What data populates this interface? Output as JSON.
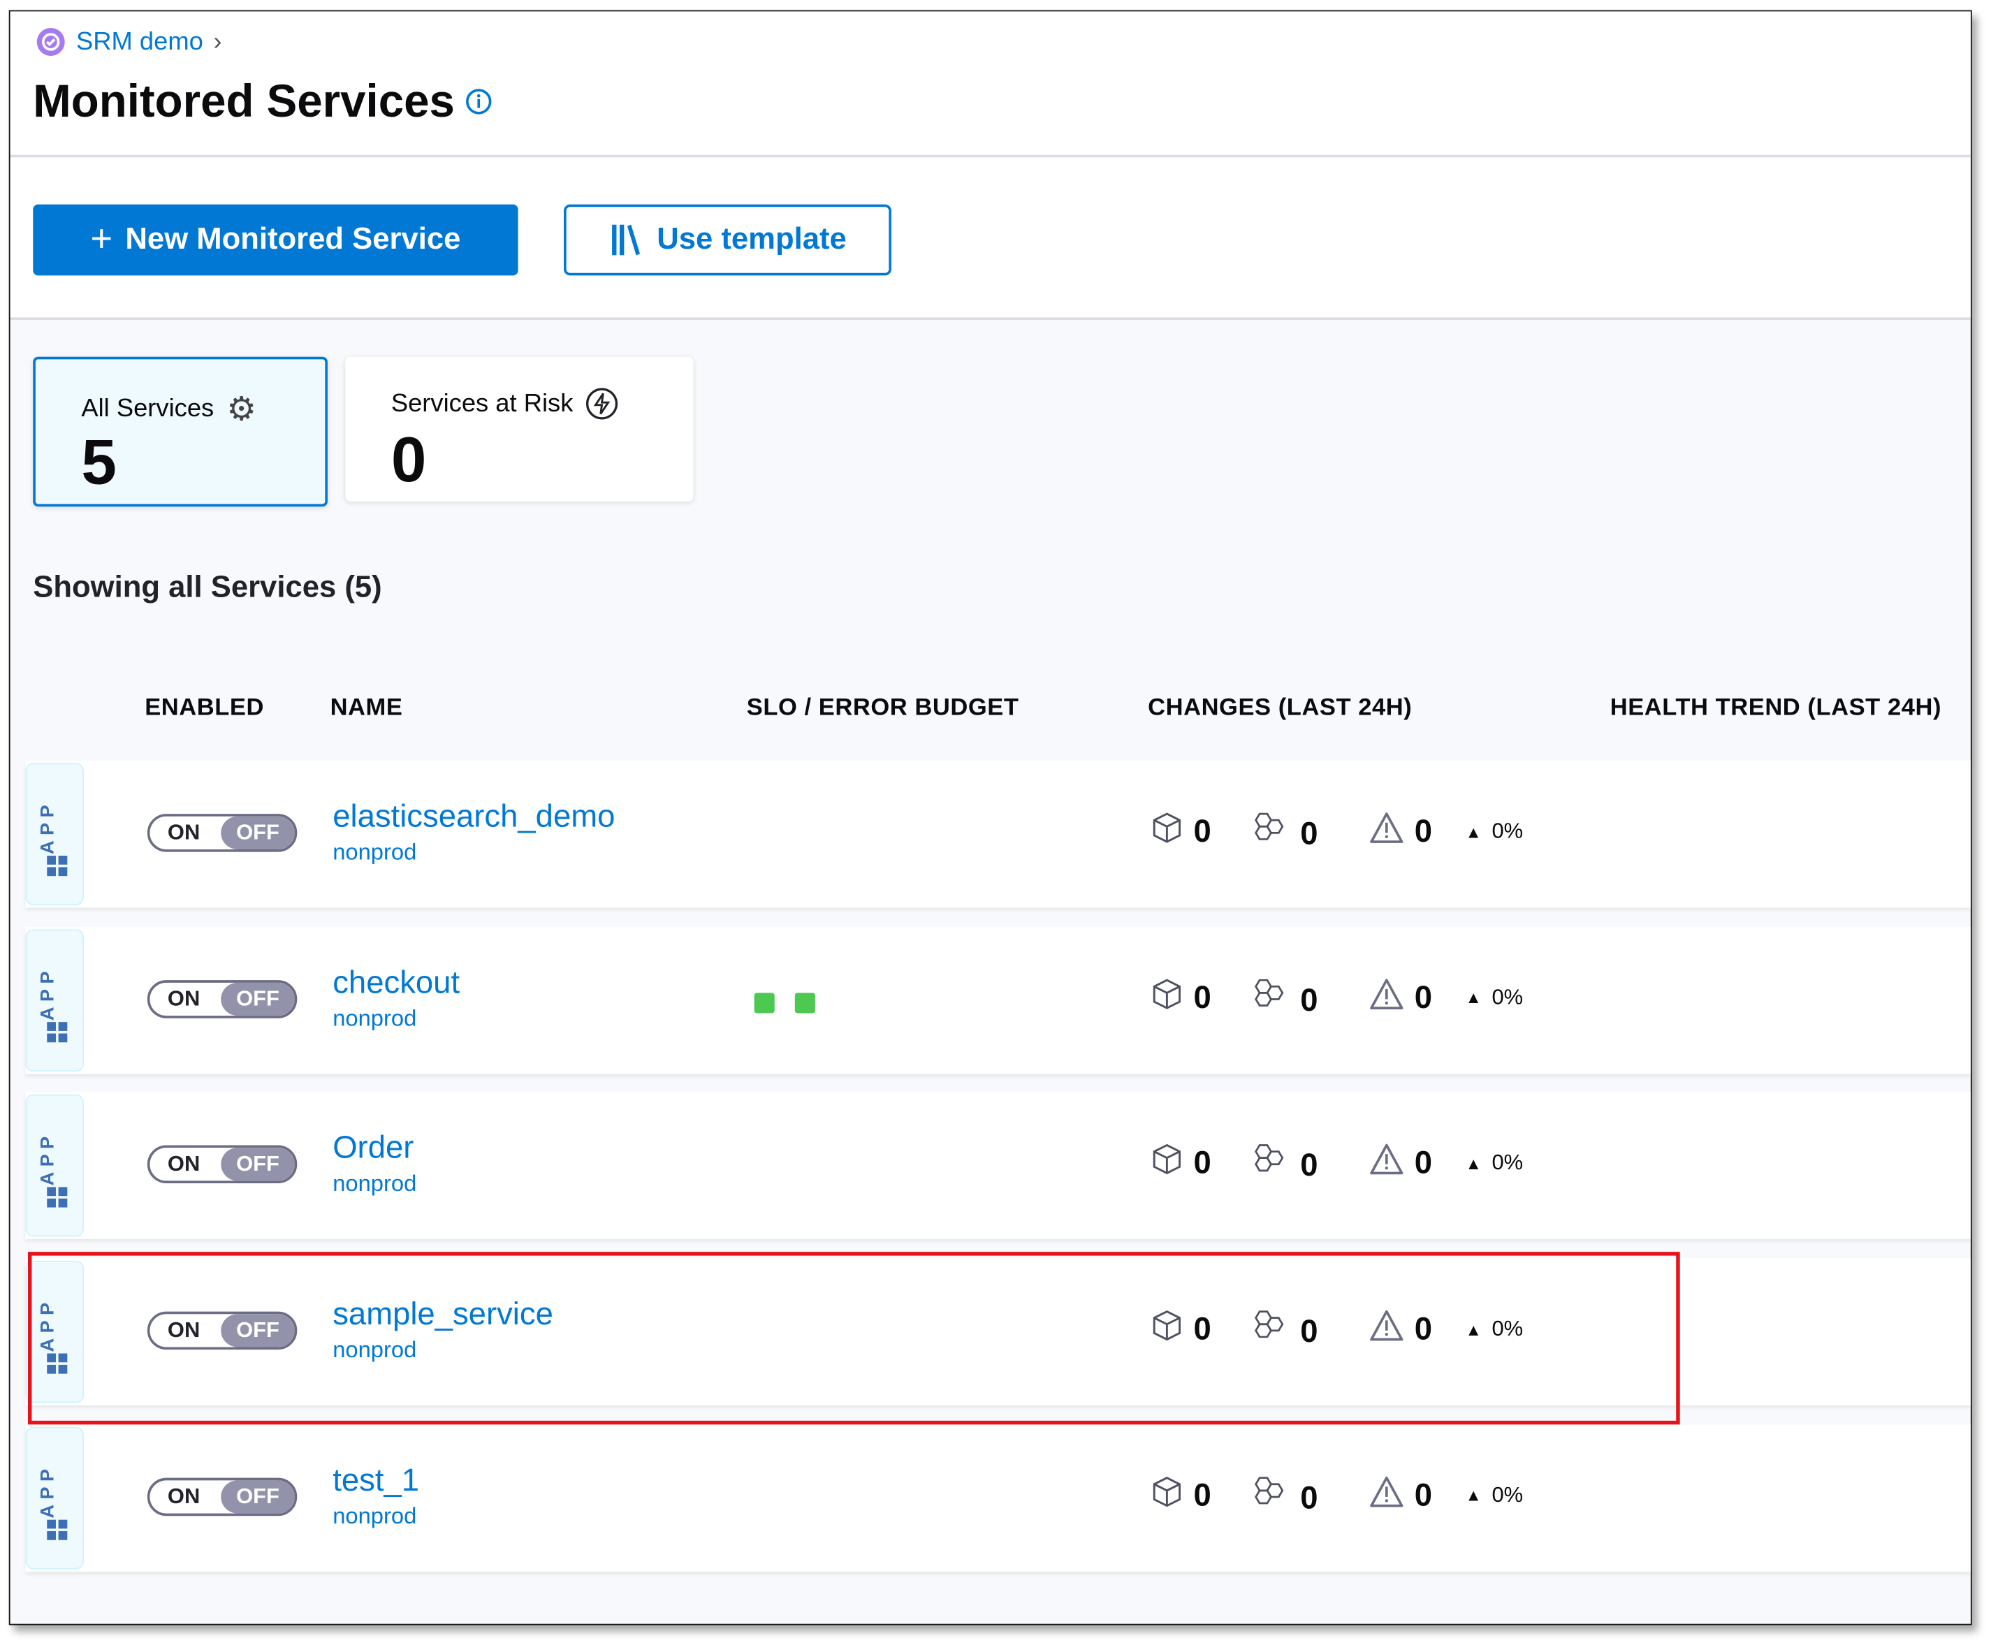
{
  "breadcrumb": {
    "project": "SRM demo",
    "icon": "project-logo-icon"
  },
  "page": {
    "title": "Monitored Services",
    "info_icon": "info-icon"
  },
  "toolbar": {
    "new_label": "New Monitored Service",
    "template_label": "Use template"
  },
  "summary": [
    {
      "label": "All Services",
      "count": "5",
      "icon": "gear-icon",
      "selected": true
    },
    {
      "label": "Services at Risk",
      "count": "0",
      "icon": "lightning-icon",
      "selected": false
    }
  ],
  "showing": "Showing all Services (5)",
  "columns": [
    "ENABLED",
    "NAME",
    "SLO / ERROR BUDGET",
    "CHANGES (LAST 24H)",
    "HEALTH TREND (LAST 24H)"
  ],
  "colors": {
    "accent": "#0278d5",
    "slo_ok": "#4dc952",
    "highlight": "#e8121b"
  },
  "rows": [
    {
      "tag": "APP",
      "on": "ON",
      "off": "OFF",
      "name": "elasticsearch_demo",
      "env": "nonprod",
      "deploy": "0",
      "infra": "0",
      "incidents": "0",
      "trend": "0%",
      "slo_count": 0
    },
    {
      "tag": "APP",
      "on": "ON",
      "off": "OFF",
      "name": "checkout",
      "env": "nonprod",
      "deploy": "0",
      "infra": "0",
      "incidents": "0",
      "trend": "0%",
      "slo_count": 2
    },
    {
      "tag": "APP",
      "on": "ON",
      "off": "OFF",
      "name": "Order",
      "env": "nonprod",
      "deploy": "0",
      "infra": "0",
      "incidents": "0",
      "trend": "0%",
      "slo_count": 0
    },
    {
      "tag": "APP",
      "on": "ON",
      "off": "OFF",
      "name": "sample_service",
      "env": "nonprod",
      "deploy": "0",
      "infra": "0",
      "incidents": "0",
      "trend": "0%",
      "slo_count": 0,
      "highlighted": true
    },
    {
      "tag": "APP",
      "on": "ON",
      "off": "OFF",
      "name": "test_1",
      "env": "nonprod",
      "deploy": "0",
      "infra": "0",
      "incidents": "0",
      "trend": "0%",
      "slo_count": 0
    }
  ]
}
